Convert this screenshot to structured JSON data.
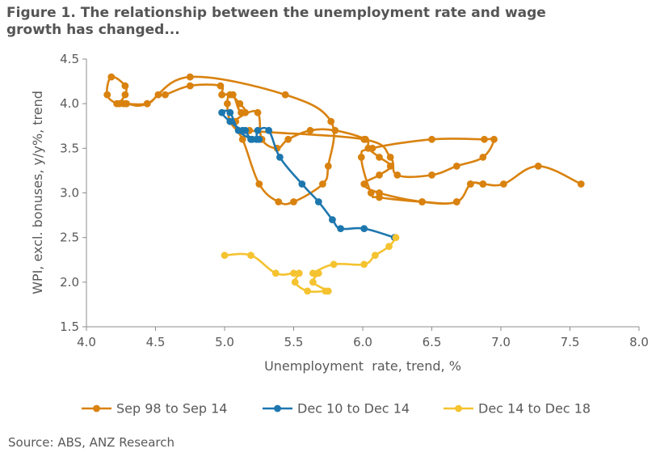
{
  "figure": {
    "title_line1": "Figure 1. The relationship between the unemployment rate and wage",
    "title_line2": "growth has changed...",
    "source": "Source: ABS, ANZ Research"
  },
  "chart_data": {
    "type": "line",
    "title": "Figure 1. The relationship between the unemployment rate and wage growth has changed...",
    "xlabel": "Unemployment  rate, trend, %",
    "ylabel": "WPI, excl. bonuses, y/y%, trend",
    "xlim": [
      4.0,
      8.0
    ],
    "ylim": [
      1.5,
      4.5
    ],
    "xticks": [
      4.0,
      4.5,
      5.0,
      5.5,
      6.0,
      6.5,
      7.0,
      7.5,
      8.0
    ],
    "yticks": [
      1.5,
      2.0,
      2.5,
      3.0,
      3.5,
      4.0,
      4.5
    ],
    "xtick_labels": [
      "4.0",
      "4.5",
      "5.0",
      "5.5",
      "6.0",
      "6.5",
      "7.0",
      "7.5",
      "8.0"
    ],
    "ytick_labels": [
      "1.5",
      "2.0",
      "2.5",
      "3.0",
      "3.5",
      "4.0",
      "4.5"
    ],
    "grid": false,
    "legend_position": "bottom",
    "series": [
      {
        "name": "Sep 98 to Sep 14",
        "color": "#D9820F",
        "points": [
          [
            7.58,
            3.1
          ],
          [
            7.27,
            3.3
          ],
          [
            7.02,
            3.1
          ],
          [
            6.87,
            3.1
          ],
          [
            6.78,
            3.1
          ],
          [
            6.68,
            2.9
          ],
          [
            6.43,
            2.9
          ],
          [
            6.12,
            3.0
          ],
          [
            6.01,
            3.1
          ],
          [
            6.12,
            3.2
          ],
          [
            6.2,
            3.3
          ],
          [
            6.12,
            3.4
          ],
          [
            6.04,
            3.5
          ],
          [
            6.02,
            3.6
          ],
          [
            5.8,
            3.7
          ],
          [
            5.62,
            3.7
          ],
          [
            5.46,
            3.6
          ],
          [
            5.38,
            3.5
          ],
          [
            5.27,
            3.6
          ],
          [
            5.24,
            3.9
          ],
          [
            5.12,
            3.9
          ],
          [
            5.06,
            4.1
          ],
          [
            4.98,
            4.1
          ],
          [
            4.97,
            4.2
          ],
          [
            4.75,
            4.2
          ],
          [
            4.57,
            4.1
          ],
          [
            4.52,
            4.1
          ],
          [
            4.44,
            4.0
          ],
          [
            4.27,
            4.0
          ],
          [
            4.22,
            4.0
          ],
          [
            4.15,
            4.1
          ],
          [
            4.18,
            4.3
          ],
          [
            4.28,
            4.2
          ],
          [
            4.28,
            4.1
          ],
          [
            4.24,
            4.0
          ],
          [
            4.29,
            4.0
          ],
          [
            4.44,
            4.0
          ],
          [
            4.75,
            4.3
          ],
          [
            5.44,
            4.1
          ],
          [
            5.77,
            3.8
          ],
          [
            5.75,
            3.3
          ],
          [
            5.71,
            3.1
          ],
          [
            5.5,
            2.9
          ],
          [
            5.39,
            2.9
          ],
          [
            5.25,
            3.1
          ],
          [
            5.13,
            3.6
          ],
          [
            5.04,
            3.8
          ],
          [
            5.02,
            4.0
          ],
          [
            5.04,
            4.1
          ],
          [
            5.11,
            4.0
          ],
          [
            5.15,
            3.9
          ],
          [
            5.08,
            3.8
          ],
          [
            5.18,
            3.7
          ],
          [
            6.01,
            3.6
          ],
          [
            6.2,
            3.4
          ],
          [
            6.25,
            3.2
          ],
          [
            6.5,
            3.2
          ],
          [
            6.68,
            3.3
          ],
          [
            6.87,
            3.4
          ],
          [
            6.95,
            3.6
          ],
          [
            6.88,
            3.6
          ],
          [
            6.5,
            3.6
          ],
          [
            6.07,
            3.5
          ],
          [
            5.99,
            3.4
          ],
          [
            6.06,
            3.0
          ],
          [
            6.12,
            2.95
          ],
          [
            6.43,
            2.9
          ],
          [
            6.68,
            2.9
          ],
          [
            6.78,
            3.1
          ],
          [
            6.87,
            3.1
          ]
        ]
      },
      {
        "name": "Dec 10 to Dec 14",
        "color": "#1D77AF",
        "points": [
          [
            6.23,
            2.5
          ],
          [
            6.01,
            2.6
          ],
          [
            5.84,
            2.6
          ],
          [
            5.78,
            2.7
          ],
          [
            5.68,
            2.9
          ],
          [
            5.56,
            3.1
          ],
          [
            5.4,
            3.4
          ],
          [
            5.32,
            3.7
          ],
          [
            5.24,
            3.7
          ],
          [
            5.23,
            3.6
          ],
          [
            5.19,
            3.6
          ],
          [
            5.15,
            3.7
          ],
          [
            5.13,
            3.7
          ],
          [
            5.04,
            3.8
          ],
          [
            4.98,
            3.9
          ],
          [
            5.04,
            3.9
          ],
          [
            5.1,
            3.7
          ],
          [
            5.2,
            3.6
          ],
          [
            5.25,
            3.6
          ]
        ]
      },
      {
        "name": "Dec 14 to Dec 18",
        "color": "#F5C330",
        "points": [
          [
            6.24,
            2.5
          ],
          [
            6.19,
            2.4
          ],
          [
            6.09,
            2.3
          ],
          [
            6.01,
            2.2
          ],
          [
            5.79,
            2.2
          ],
          [
            5.64,
            2.1
          ],
          [
            5.68,
            2.1
          ],
          [
            5.64,
            2.0
          ],
          [
            5.75,
            1.9
          ],
          [
            5.73,
            1.9
          ],
          [
            5.6,
            1.9
          ],
          [
            5.51,
            2.0
          ],
          [
            5.54,
            2.1
          ],
          [
            5.5,
            2.1
          ],
          [
            5.37,
            2.1
          ],
          [
            5.19,
            2.3
          ],
          [
            5.0,
            2.3
          ]
        ]
      }
    ]
  }
}
